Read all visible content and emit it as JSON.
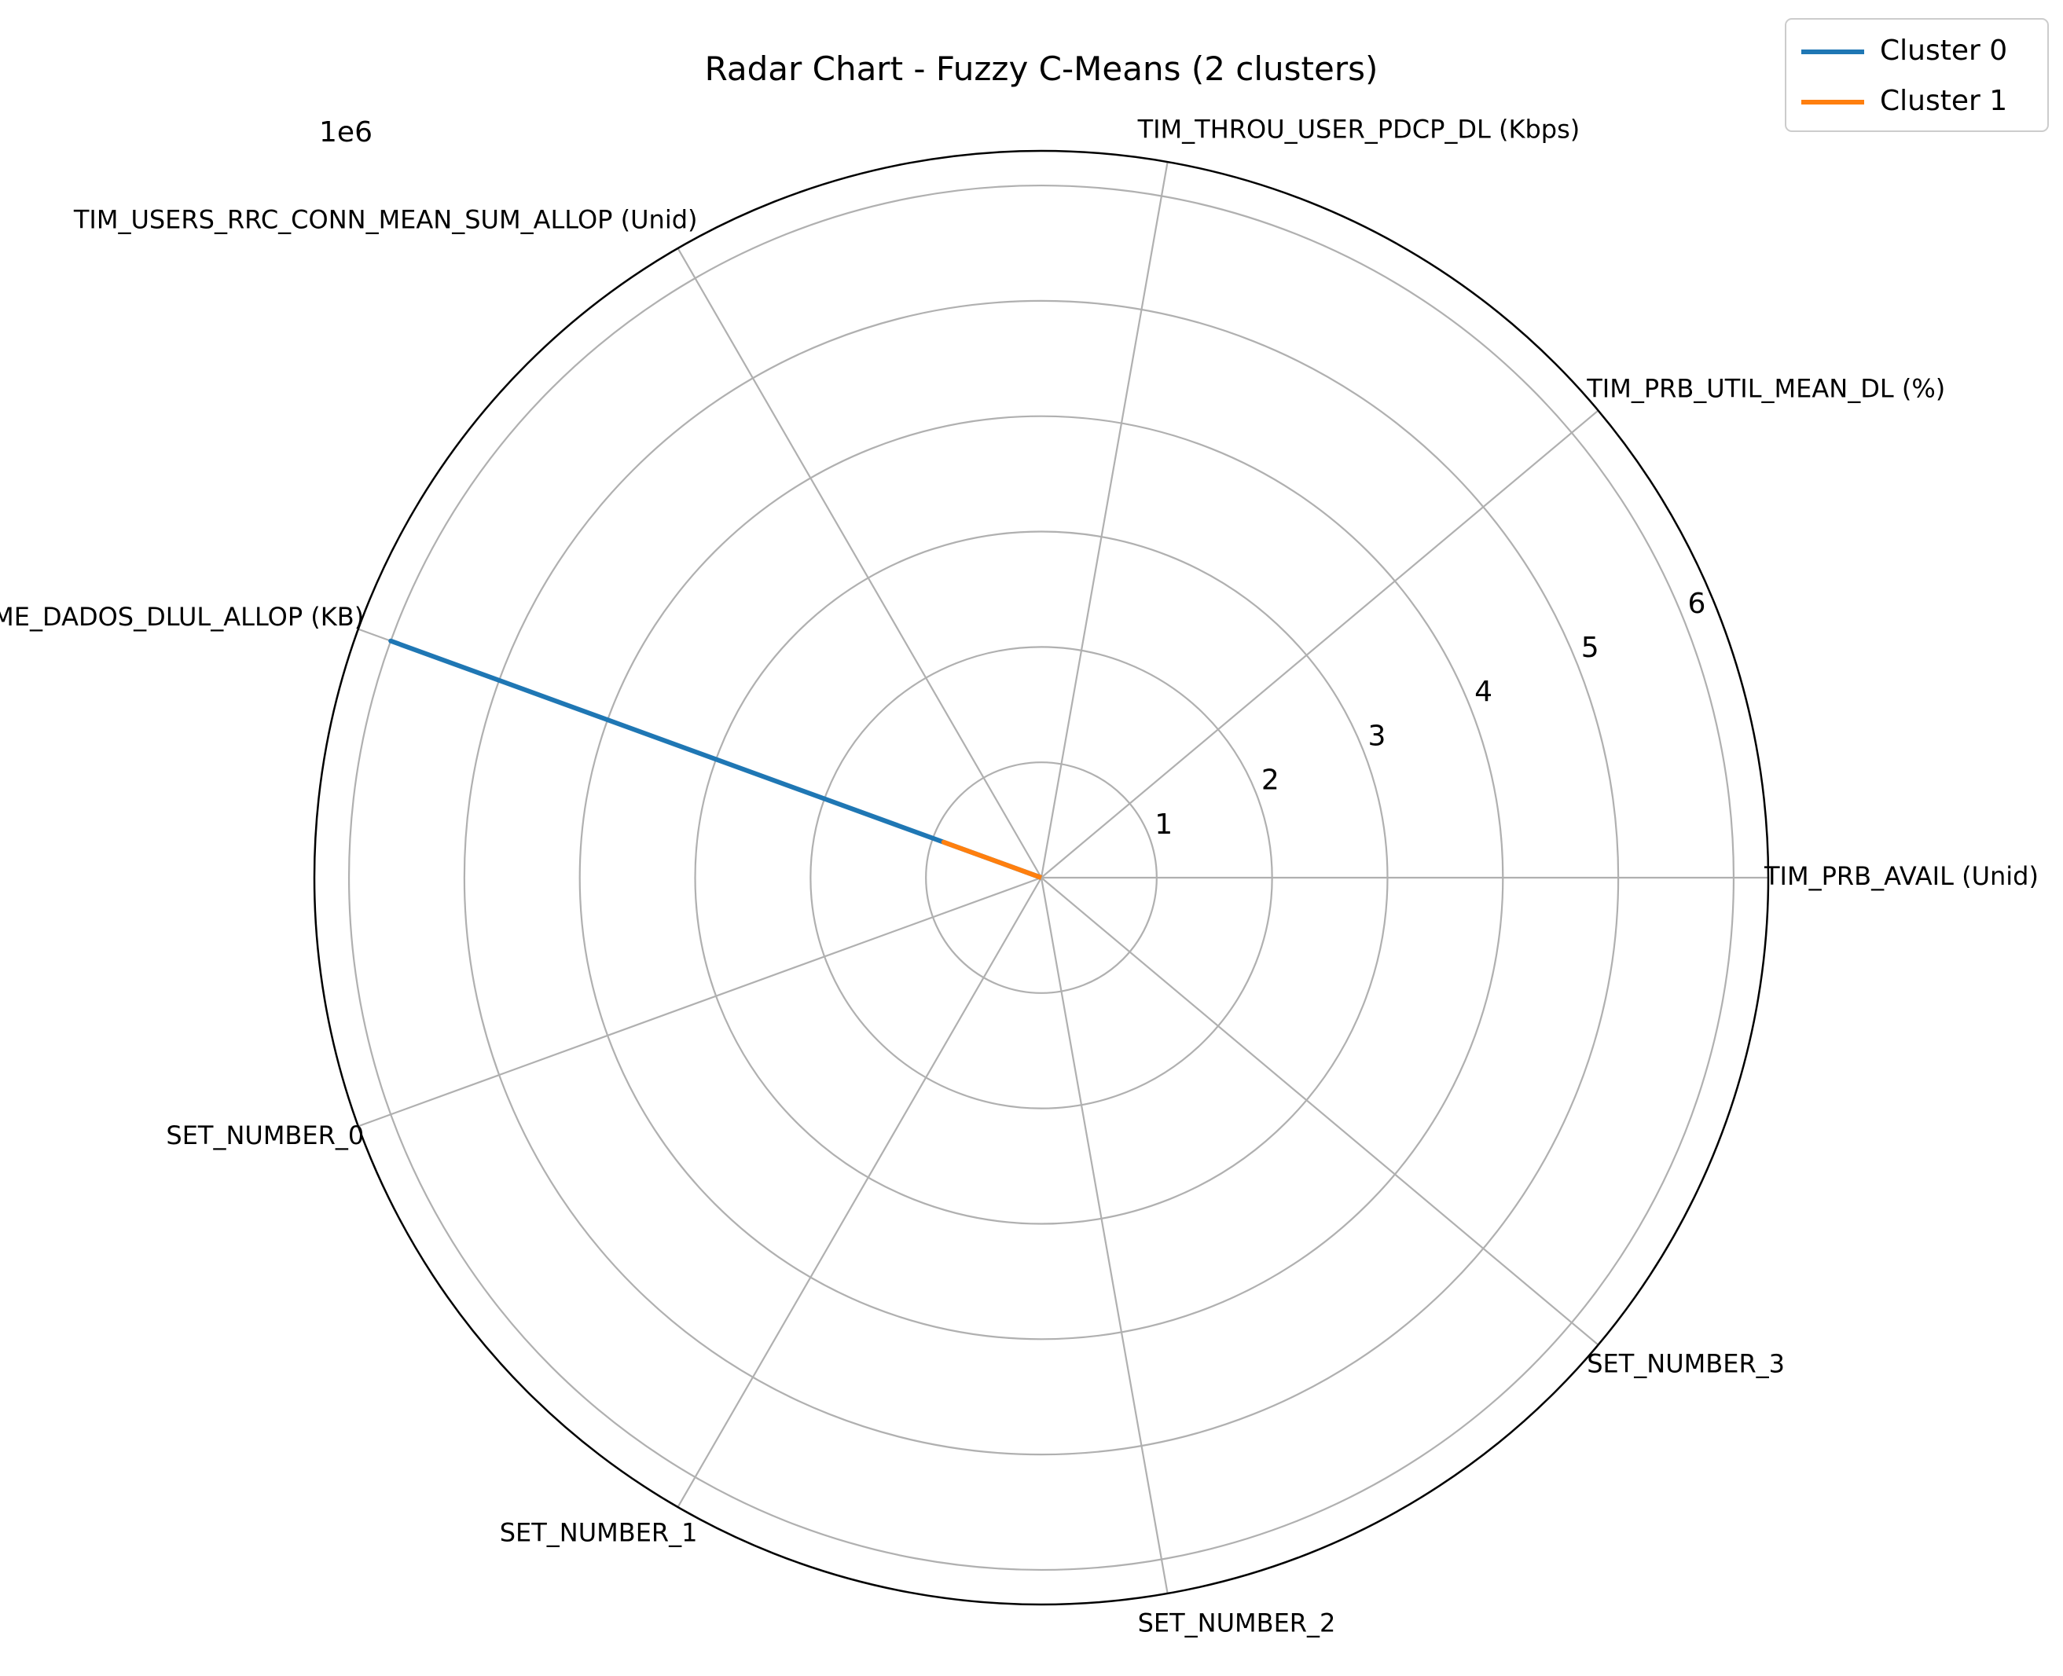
{
  "chart_data": {
    "type": "radar",
    "title": "Radar Chart - Fuzzy C-Means (2 clusters)",
    "offset_text": "1e6",
    "categories": [
      "TIM_PRB_AVAIL (Unid)",
      "TIM_PRB_UTIL_MEAN_DL (%)",
      "TIM_THROU_USER_PDCP_DL (Kbps)",
      "TIM_USERS_RRC_CONN_MEAN_SUM_ALLOP (Unid)",
      "TIM_VOLUME_DADOS_DLUL_ALLOP (KB)",
      "SET_NUMBER_0",
      "SET_NUMBER_1",
      "SET_NUMBER_2",
      "SET_NUMBER_3"
    ],
    "r_ticks": [
      1,
      2,
      3,
      4,
      5,
      6
    ],
    "r_max": 6.3,
    "series": [
      {
        "name": "Cluster 0",
        "color": "#1f77b4",
        "values": [
          0,
          0,
          0,
          0,
          6.0,
          0,
          0,
          0,
          0
        ]
      },
      {
        "name": "Cluster 1",
        "color": "#ff7f0e",
        "values": [
          0,
          0,
          0,
          0,
          0.9,
          0,
          0,
          0,
          0
        ]
      }
    ],
    "grid": true,
    "legend_position": "top-right"
  }
}
